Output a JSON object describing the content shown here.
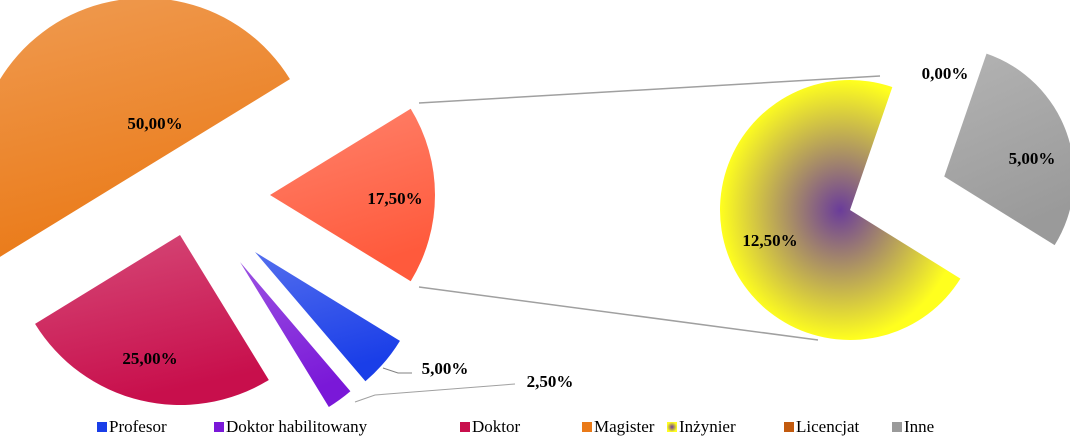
{
  "chart_data": {
    "type": "pie_of_pie",
    "categories": [
      "Profesor",
      "Doktor habilitowany",
      "Doktor",
      "Magister",
      "Inżynier",
      "Licencjat",
      "Inne"
    ],
    "values": [
      5,
      2.5,
      25,
      50,
      12.5,
      0,
      5
    ],
    "value_labels": [
      "5,00%",
      "2,50%",
      "25,00%",
      "50,00%",
      "12,50%",
      "0,00%",
      "5,00%"
    ],
    "colors": [
      "#1a3ee8",
      "#7a18d8",
      "#c80f4c",
      "#ea7a18",
      "#ffff1e",
      "#c25a0e",
      "#9a9a9a"
    ],
    "other": {
      "value": 17.5,
      "label": "17,50%",
      "color": "#ff5a3c"
    },
    "legend": "bottom"
  }
}
